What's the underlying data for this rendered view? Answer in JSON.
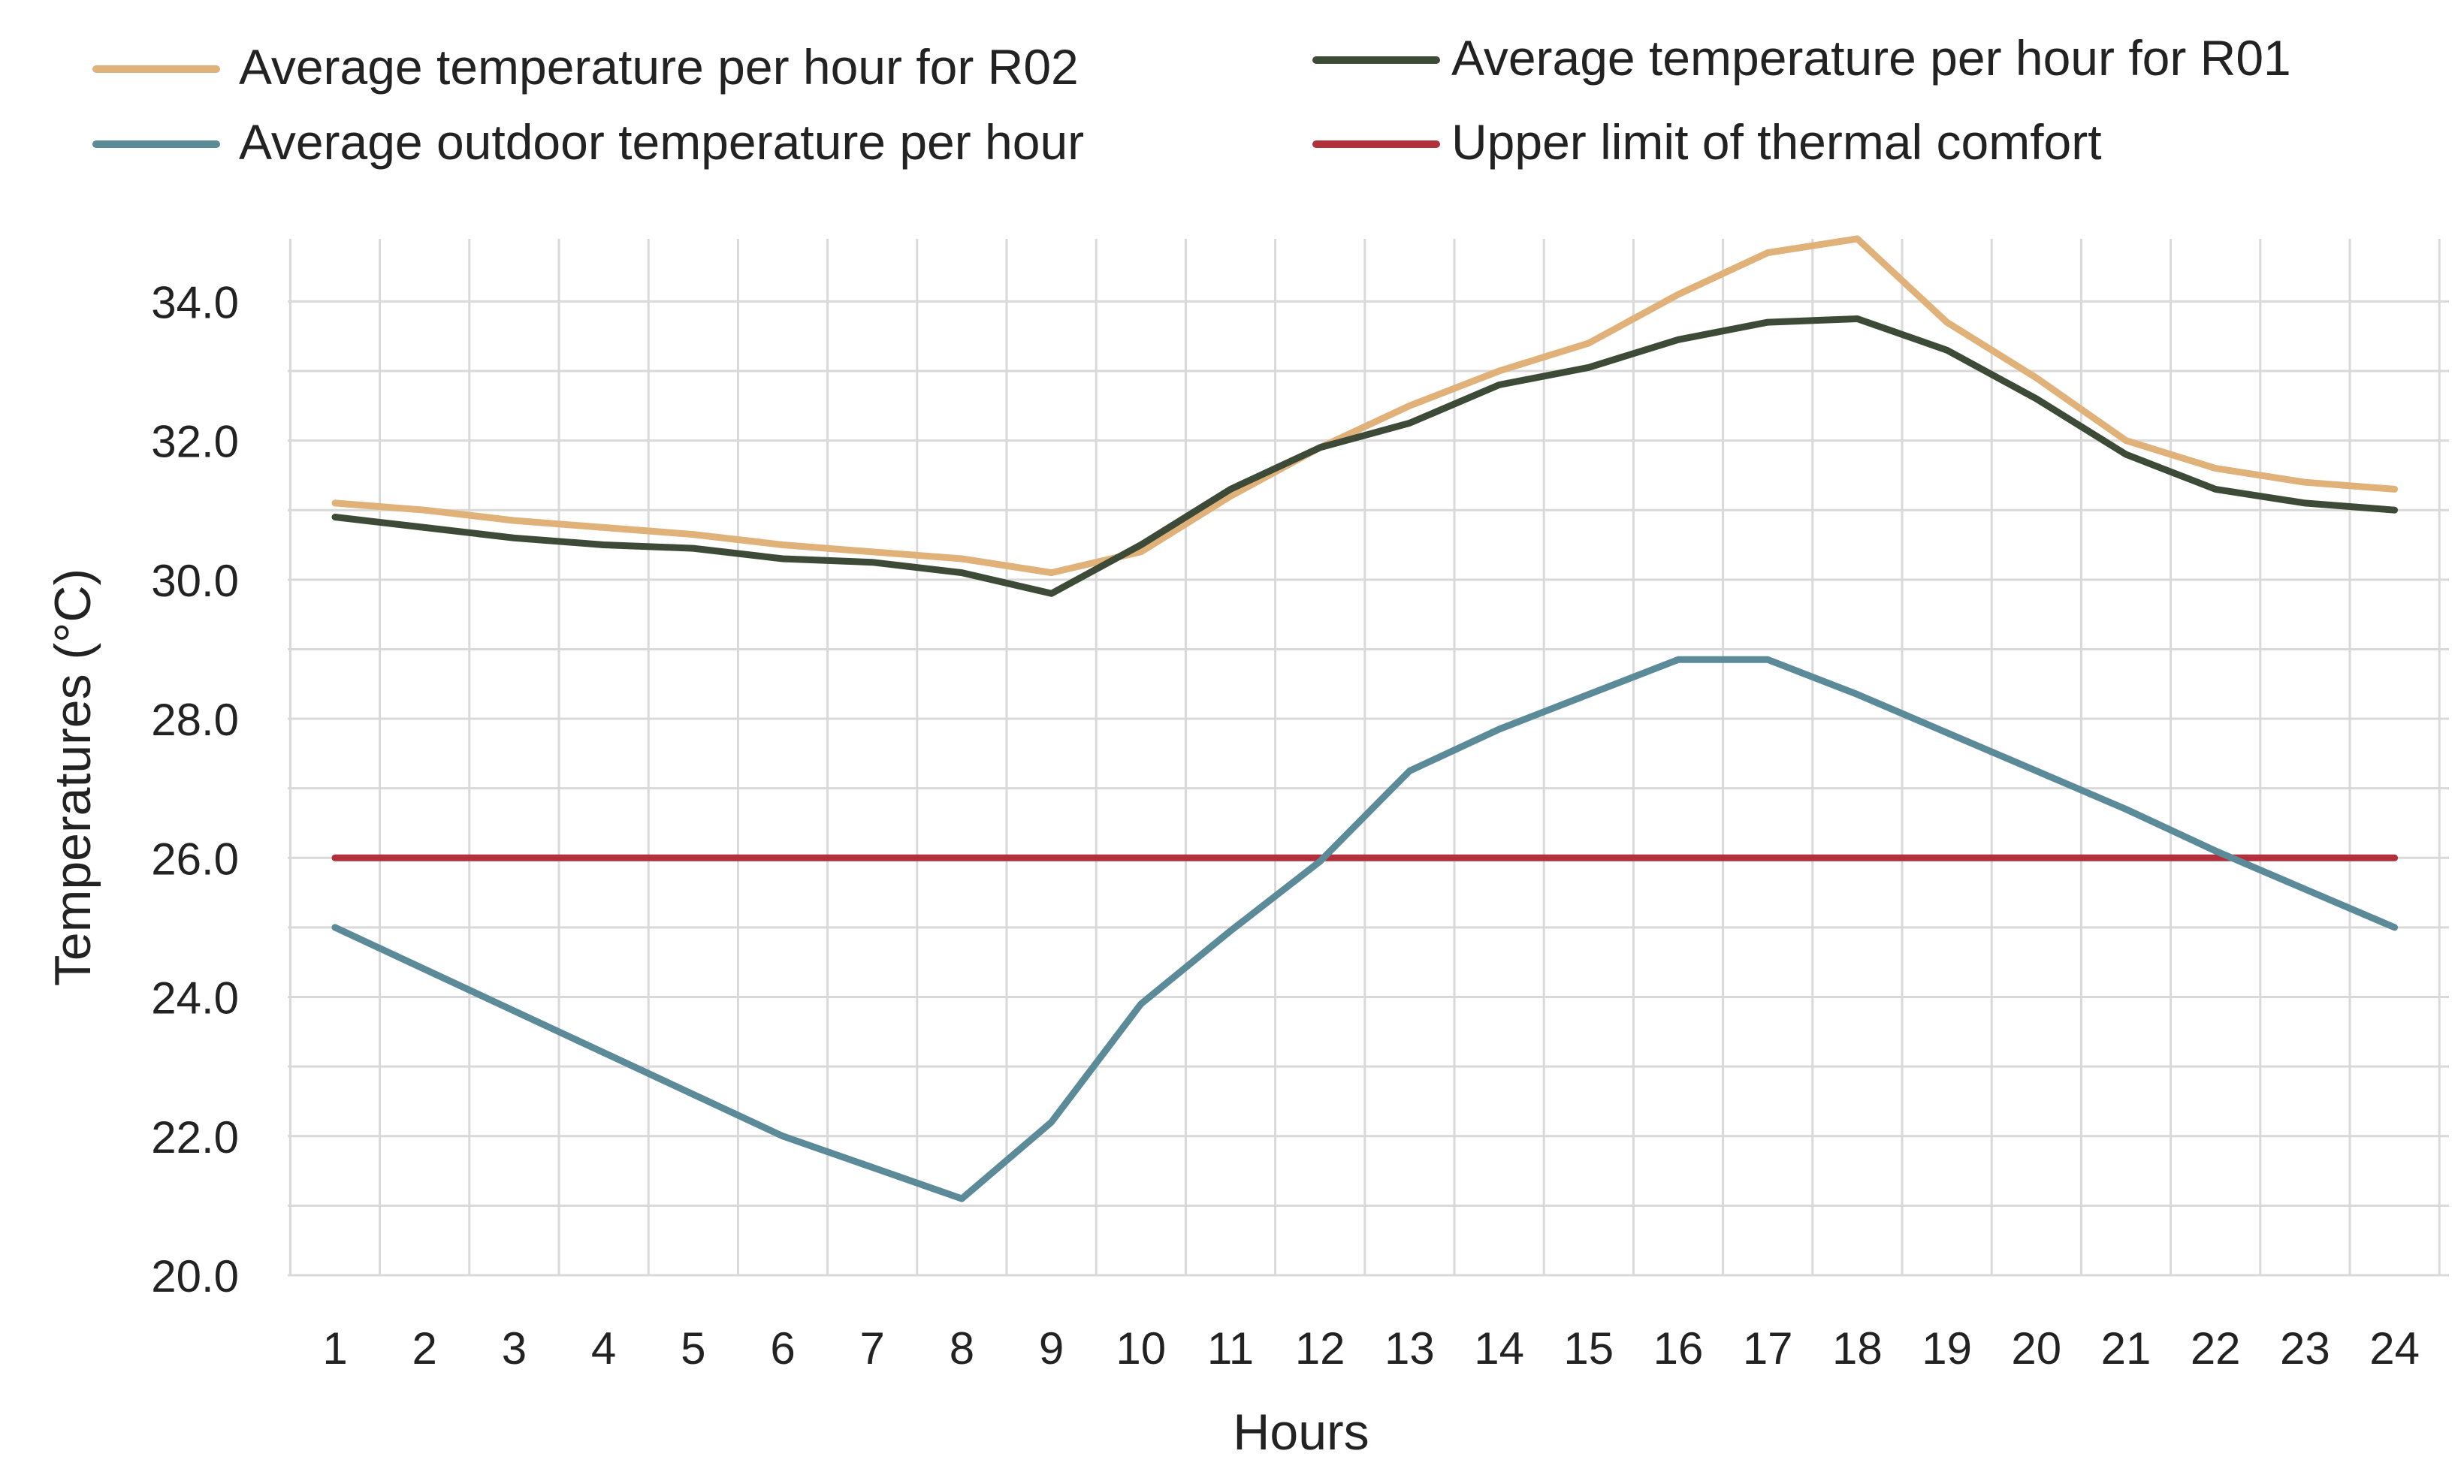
{
  "chart_data": {
    "type": "line",
    "title": "",
    "xlabel": "Hours",
    "ylabel": "Temperatures (°C)",
    "categories": [
      "1",
      "2",
      "3",
      "4",
      "5",
      "6",
      "7",
      "8",
      "9",
      "10",
      "11",
      "12",
      "13",
      "14",
      "15",
      "16",
      "17",
      "18",
      "19",
      "20",
      "21",
      "22",
      "23",
      "24"
    ],
    "y_ticks": [
      "20.0",
      "22.0",
      "24.0",
      "26.0",
      "28.0",
      "30.0",
      "32.0",
      "34.0"
    ],
    "ylim": [
      20,
      34.9
    ],
    "grid": true,
    "legend_position": "top",
    "series": [
      {
        "name": "Average temperature per hour for R02",
        "color": "#e0b27a",
        "values": [
          31.1,
          31.0,
          30.85,
          30.75,
          30.65,
          30.5,
          30.4,
          30.3,
          30.1,
          30.4,
          31.2,
          31.9,
          32.5,
          33.0,
          33.4,
          34.1,
          34.7,
          34.9,
          33.7,
          32.9,
          32.0,
          31.6,
          31.4,
          31.3
        ]
      },
      {
        "name": "Average temperature per hour for R01",
        "color": "#3d4a37",
        "values": [
          30.9,
          30.75,
          30.6,
          30.5,
          30.45,
          30.3,
          30.25,
          30.1,
          29.8,
          30.5,
          31.3,
          31.9,
          32.25,
          32.8,
          33.05,
          33.45,
          33.7,
          33.75,
          33.3,
          32.6,
          31.8,
          31.3,
          31.1,
          31.0
        ]
      },
      {
        "name": "Average outdoor temperature per hour",
        "color": "#5b8a98",
        "values": [
          25.0,
          24.4,
          23.8,
          23.2,
          22.6,
          22.0,
          21.55,
          21.1,
          22.2,
          23.9,
          24.95,
          25.95,
          27.25,
          27.85,
          28.35,
          28.85,
          28.85,
          28.35,
          27.8,
          27.25,
          26.7,
          26.1,
          25.55,
          25.0
        ]
      },
      {
        "name": "Upper limit of thermal comfort",
        "color": "#b2303b",
        "values": [
          26,
          26,
          26,
          26,
          26,
          26,
          26,
          26,
          26,
          26,
          26,
          26,
          26,
          26,
          26,
          26,
          26,
          26,
          26,
          26,
          26,
          26,
          26,
          26
        ]
      }
    ]
  }
}
